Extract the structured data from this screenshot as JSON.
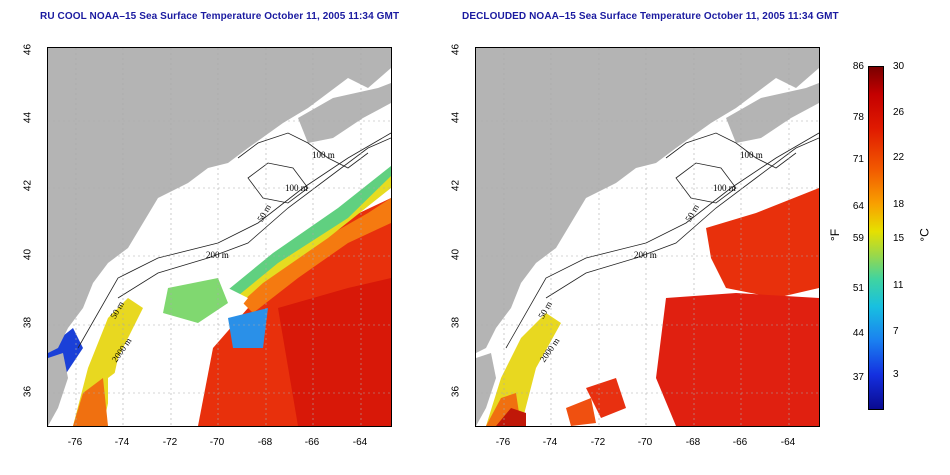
{
  "left_panel": {
    "title": "RU COOL NOAA–15 Sea Surface Temperature October 11, 2005 11:34 GMT"
  },
  "right_panel": {
    "title": "DECLOUDED NOAA–15 Sea Surface Temperature October 11, 2005 11:34 GMT"
  },
  "axes": {
    "y_ticks": [
      "46",
      "44",
      "42",
      "40",
      "38",
      "36"
    ],
    "x_ticks": [
      "-76",
      "-74",
      "-72",
      "-70",
      "-68",
      "-66",
      "-64"
    ]
  },
  "contour_labels": {
    "c100_a": "100 m",
    "c100_b": "100 m",
    "c50": "50 m",
    "c200": "200 m",
    "c50b": "50 m",
    "c2000": "2000 m"
  },
  "colorbar": {
    "fahrenheit_ticks": [
      "86",
      "78",
      "71",
      "64",
      "59",
      "51",
      "44",
      "37"
    ],
    "celsius_ticks": [
      "30",
      "26",
      "22",
      "18",
      "15",
      "11",
      "7",
      "3"
    ],
    "fahrenheit_unit": "°F",
    "celsius_unit": "°C"
  },
  "colors": {
    "land": "#b4b4b4",
    "cloud": "#ffffff",
    "title": "#1a1aa0",
    "warm": "#e8200a",
    "cool": "#1a6af0"
  }
}
